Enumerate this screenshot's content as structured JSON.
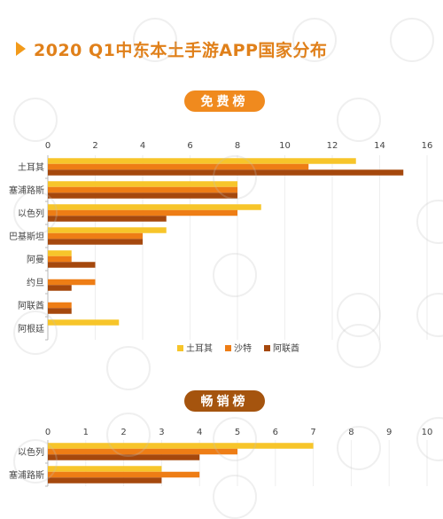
{
  "title": "2020 Q1中东本土手游APP国家分布",
  "pill1": "免费榜",
  "pill2": "畅销榜",
  "colors": {
    "turkey": "#f7c52a",
    "saudi": "#ee7d15",
    "uae": "#a5480d",
    "axis": "#b8b8b8",
    "text": "#444444"
  },
  "chart_data": [
    {
      "type": "bar",
      "orientation": "horizontal",
      "title": "免费榜",
      "categories": [
        "土耳其",
        "塞浦路斯",
        "以色列",
        "巴基斯坦",
        "阿曼",
        "约旦",
        "阿联酋",
        "阿根廷"
      ],
      "series": [
        {
          "name": "土耳其",
          "values": [
            13,
            8,
            9,
            5,
            1,
            0,
            0,
            3
          ]
        },
        {
          "name": "沙特",
          "values": [
            11,
            8,
            8,
            4,
            1,
            2,
            1,
            0
          ]
        },
        {
          "name": "阿联酋",
          "values": [
            15,
            8,
            5,
            4,
            2,
            1,
            1,
            0
          ]
        }
      ],
      "xlim": [
        0,
        16
      ],
      "xticks": [
        0,
        2,
        4,
        6,
        8,
        10,
        12,
        14,
        16
      ],
      "legend_position": "bottom"
    },
    {
      "type": "bar",
      "orientation": "horizontal",
      "title": "畅销榜",
      "categories": [
        "以色列",
        "塞浦路斯"
      ],
      "series": [
        {
          "name": "土耳其",
          "values": [
            7,
            3
          ]
        },
        {
          "name": "沙特",
          "values": [
            5,
            4
          ]
        },
        {
          "name": "阿联酋",
          "values": [
            4,
            3
          ]
        }
      ],
      "xlim": [
        0,
        10
      ],
      "xticks": [
        0,
        1,
        2,
        3,
        4,
        5,
        6,
        7,
        8,
        9,
        10
      ]
    }
  ]
}
